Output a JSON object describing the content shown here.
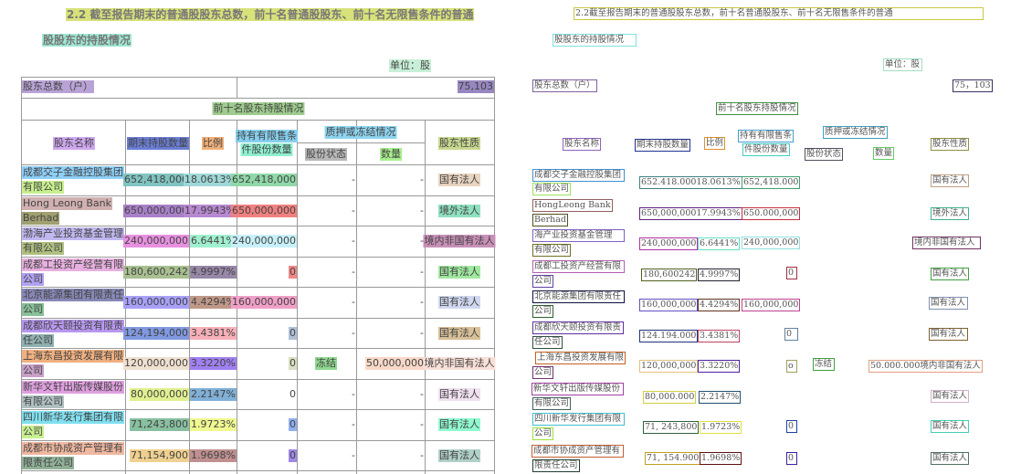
{
  "left": {
    "title1": {
      "text": "2.2 截至报告期末的普通股股东总数，前十名普通股股东、前十名无限售条件的普通",
      "color": "#d8e27a"
    },
    "title2": {
      "text": "股股东的持股情况",
      "color": "#9fe8d4"
    },
    "unit": {
      "text": "单位：股",
      "color": "#c8f0d8"
    },
    "total_label": {
      "text": "股东总数（户）",
      "color": "#b9a3d6"
    },
    "total_value": {
      "text": "75,103",
      "color": "#9787c0"
    },
    "section": {
      "text": "前十名股东持股情况",
      "color": "#9fcc8e"
    },
    "headers": [
      {
        "text": "股东名称",
        "color": "#cfa8f0"
      },
      {
        "text": "期末持股数量",
        "color": "#6a7ed6"
      },
      {
        "text": "比例",
        "color": "#f0b07a"
      },
      {
        "text": "持有有限售条",
        "color": "#86d0f0"
      },
      {
        "text": "件股份数量",
        "color": "#8ef0d0"
      },
      {
        "text": "质押或冻结情况",
        "color": "#8ed4f0"
      },
      {
        "text": "股份状态",
        "color": "#b8b8b8"
      },
      {
        "text": "数量",
        "color": "#a8f08e"
      },
      {
        "text": "股东性质",
        "color": "#c8d890"
      }
    ],
    "rows": [
      {
        "name": [
          "成都交子金融控股集团",
          "有限公司"
        ],
        "name_colors": [
          "#8ed0f8",
          "#c8f08e"
        ],
        "qty": "652,418,000",
        "qty_color": "#7fc4c0",
        "ratio": "18.0613%",
        "ratio_color": "#9fd8d8",
        "restricted": "652,418,000",
        "restricted_color": "#8fd8a8",
        "status": "-",
        "amount": "-",
        "nature": "国有法人",
        "nature_color": "#e8d4c0"
      },
      {
        "name": [
          "Hong Leong Bank",
          "Berhad"
        ],
        "name_colors": [
          "#d0b0b0",
          "#a0a070"
        ],
        "qty": "650,000,000",
        "qty_color": "#a880c8",
        "ratio": "17.9943%",
        "ratio_color": "#b888d0",
        "restricted": "650,000,000",
        "restricted_color": "#f08080",
        "status": "-",
        "amount": "-",
        "nature": "境外法人",
        "nature_color": "#90e0c0"
      },
      {
        "name": [
          "渤海产业投资基金管理",
          "有限公司"
        ],
        "name_colors": [
          "#c0b8f0",
          "#b0c080"
        ],
        "qty": "240,000,000",
        "qty_color": "#e890e0",
        "ratio": "6.6441%",
        "ratio_color": "#a0f0d0",
        "restricted": "240,000,000",
        "restricted_color": "#c8f0f8",
        "status": "-",
        "amount": "-",
        "nature": "境内非国有法人",
        "nature_color": "#c890b8"
      },
      {
        "name": [
          "成都工投资产经营有限",
          "公司"
        ],
        "name_colors": [
          "#e8b0e0",
          "#b0a0f0"
        ],
        "qty": "180,600,242",
        "qty_color": "#a8c090",
        "ratio": "4.9997%",
        "ratio_color": "#9888a8",
        "restricted": "0",
        "restricted_color": "#f08888",
        "status": "-",
        "amount": "-",
        "nature": "国有法人",
        "nature_color": "#a0e8a0"
      },
      {
        "name": [
          "北京能源集团有限责任",
          "公司"
        ],
        "name_colors": [
          "#8888b8",
          "#88c098"
        ],
        "qty": "160,000,000",
        "qty_color": "#a8a0f8",
        "ratio": "4.4294%",
        "ratio_color": "#c09888",
        "restricted": "160,000,000",
        "restricted_color": "#f0a0c8",
        "status": "-",
        "amount": "-",
        "nature": "国有法人",
        "nature_color": "#d0d8f0"
      },
      {
        "name": [
          "成都欣天颐投资有限责",
          "任公司"
        ],
        "name_colors": [
          "#b898f0",
          "#90b0b0"
        ],
        "qty": "124,194,000",
        "qty_color": "#8098e0",
        "ratio": "3.4381%",
        "ratio_color": "#f8b0b8",
        "restricted": "0",
        "restricted_color": "#b0c0d8",
        "status": "-",
        "amount": "-",
        "nature": "国有法人",
        "nature_color": "#d8c098"
      },
      {
        "name": [
          "上海东昌投资发展有限",
          "公司"
        ],
        "name_colors": [
          "#f0b080",
          "#c8a0c8"
        ],
        "qty": "120,000,000",
        "qty_color": "#f0e0d0",
        "ratio": "3.3220%",
        "ratio_color": "#a080f0",
        "restricted": "0",
        "restricted_color": "#d8e0c0",
        "status": "冻结",
        "status_color": "#90d890",
        "amount": "50,000,000",
        "amount_color": "#f8d8c8",
        "nature": "境内非国有法人",
        "nature_color": "#f8e0d8"
      },
      {
        "name": [
          "新华文轩出版传媒股份",
          "有限公司"
        ],
        "name_colors": [
          "#e0a0e0",
          "#b0c0c0"
        ],
        "qty": "80,000,000",
        "qty_color": "#e0f090",
        "ratio": "2.2147%",
        "ratio_color": "#80b0d8",
        "restricted": "0",
        "status": "-",
        "amount": "-",
        "nature": "国有法人",
        "nature_color": "#f0e0f0"
      },
      {
        "name": [
          "四川新华发行集团有限",
          "公司"
        ],
        "name_colors": [
          "#80e0f0",
          "#c8f090"
        ],
        "qty": "71,243,800",
        "qty_color": "#88c0a0",
        "ratio": "1.9723%",
        "ratio_color": "#f0f890",
        "restricted": "0",
        "restricted_color": "#90b0f0",
        "status": "-",
        "amount": "-",
        "nature": "国有法人",
        "nature_color": "#90f8d0"
      },
      {
        "name": [
          "成都市协成资产管理有",
          "限责任公司"
        ],
        "name_colors": [
          "#f0b8a0",
          "#90b098"
        ],
        "qty": "71,154,900",
        "qty_color": "#f0d090",
        "ratio": "1.9698%",
        "ratio_color": "#c09090",
        "restricted": "0",
        "restricted_color": "#a088e8",
        "status": "-",
        "amount": "-",
        "nature": "国有法人",
        "nature_color": "#b0d0c8"
      }
    ]
  },
  "ocr": [
    {
      "text": "2.2截至报告期末的普通股股东总数，前十名普通股股东、前十名无限售条件的普通",
      "color": "#c8c840"
    },
    {
      "text": "股股东的持股情况",
      "color": "#80e0e0"
    },
    {
      "text": "单位：股",
      "color": "#a0e0c0"
    },
    {
      "text": "股东总数（户）",
      "color": "#8060a0"
    },
    {
      "text": "75，103",
      "color": "#403060"
    },
    {
      "text": "前十名股东持股情况",
      "color": "#409040"
    },
    {
      "text": "股东名称",
      "color": "#9060c0"
    },
    {
      "text": "期末持股数量",
      "color": "#203090"
    },
    {
      "text": "比例",
      "color": "#e09030"
    },
    {
      "text": "持有有限售条",
      "color": "#40a0d0"
    },
    {
      "text": "件股份数量",
      "color": "#40d0c0"
    },
    {
      "text": "质押或冻结情况",
      "color": "#40a0c0"
    },
    {
      "text": "股份状态",
      "color": "#505060"
    },
    {
      "text": "数量",
      "color": "#60d060"
    },
    {
      "text": "股东性质",
      "color": "#909040"
    },
    {
      "text": "成都交子金融控股集团",
      "color": "#4090d0"
    },
    {
      "text": "有限公司",
      "color": "#a0e060"
    },
    {
      "text": "652.418.00018.0613%",
      "color": "#408080"
    },
    {
      "text": "652,418.000",
      "color": "#40a070"
    },
    {
      "text": "国有法人",
      "color": "#c0a080"
    },
    {
      "text": "HongLeong Bank",
      "color": "#906060"
    },
    {
      "text": "Berhad",
      "color": "#505020"
    },
    {
      "text": "650,000,00017.9943%",
      "color": "#602080"
    },
    {
      "text": "650.000,000",
      "color": "#c03040"
    },
    {
      "text": "境外法人",
      "color": "#40b090"
    },
    {
      "text": "海产业投资基金管理",
      "color": "#8060c0"
    },
    {
      "text": "有限公司",
      "color": "#707020"
    },
    {
      "text": "240,000,000",
      "color": "#b030a0"
    },
    {
      "text": "6.6441%",
      "color": "#60e0c0"
    },
    {
      "text": "240,000,000",
      "color": "#90e0e0"
    },
    {
      "text": "境内非国有法人",
      "color": "#703060"
    },
    {
      "text": "成都工投资产经营有限",
      "color": "#b060b0"
    },
    {
      "text": "公司",
      "color": "#6040a0"
    },
    {
      "text": "180,600242",
      "color": "#506020"
    },
    {
      "text": "4.9997%",
      "color": "#202030"
    },
    {
      "text": "0",
      "color": "#a03040"
    },
    {
      "text": "国有法人",
      "color": "#40a040"
    },
    {
      "text": "北京能源集团有限责任",
      "color": "#101040"
    },
    {
      "text": "公司",
      "color": "#306030"
    },
    {
      "text": "160,000,000",
      "color": "#6050c0"
    },
    {
      "text": "4.4294%",
      "color": "#603020"
    },
    {
      "text": "160,000,000",
      "color": "#c04090"
    },
    {
      "text": "国有法人",
      "color": "#8090b0"
    },
    {
      "text": "成都欣天颐投资有限责",
      "color": "#6030a0"
    },
    {
      "text": "任公司",
      "color": "#305040"
    },
    {
      "text": "124.194.000",
      "color": "#203080"
    },
    {
      "text": "3.4381%",
      "color": "#c04060"
    },
    {
      "text": "0",
      "color": "#6080a0"
    },
    {
      "text": "国有法人",
      "color": "#806030"
    },
    {
      "text": "上海东昌投资发展有限",
      "color": "#c06020"
    },
    {
      "text": "公司",
      "color": "#703070"
    },
    {
      "text": "120,000,000",
      "color": "#e0c080"
    },
    {
      "text": "3.3220%",
      "color": "#5020a0"
    },
    {
      "text": "o",
      "color": "#a0a060"
    },
    {
      "text": "冻结",
      "color": "#40a040"
    },
    {
      "text": "50.000.000境内非国有法人",
      "color": "#e0a080"
    },
    {
      "text": "新华文轩出版传媒股份",
      "color": "#a040a0"
    },
    {
      "text": "有限公司",
      "color": "#406060"
    },
    {
      "text": "80,000.000",
      "color": "#d0d040"
    },
    {
      "text": "2.2147%",
      "color": "#205070"
    },
    {
      "text": "国有法人",
      "color": "#d0b0c8"
    },
    {
      "text": "四川新华发行集团有限",
      "color": "#40c0d0"
    },
    {
      "text": "公司",
      "color": "#a0e040"
    },
    {
      "text": "71, 243,800",
      "color": "#306040"
    },
    {
      "text": "1.9723%",
      "color": "#e0e040"
    },
    {
      "text": "0",
      "color": "#2040a0"
    },
    {
      "text": "国有法人",
      "color": "#40d0b0"
    },
    {
      "text": "成都市协成资产管理有",
      "color": "#c06030"
    },
    {
      "text": "限责任公司",
      "color": "#204030"
    },
    {
      "text": "71, 154.900",
      "color": "#c0a020"
    },
    {
      "text": "1.9698%",
      "color": "#601010"
    },
    {
      "text": "0",
      "color": "#4020a0"
    },
    {
      "text": "国有法人",
      "color": "#507060"
    }
  ]
}
